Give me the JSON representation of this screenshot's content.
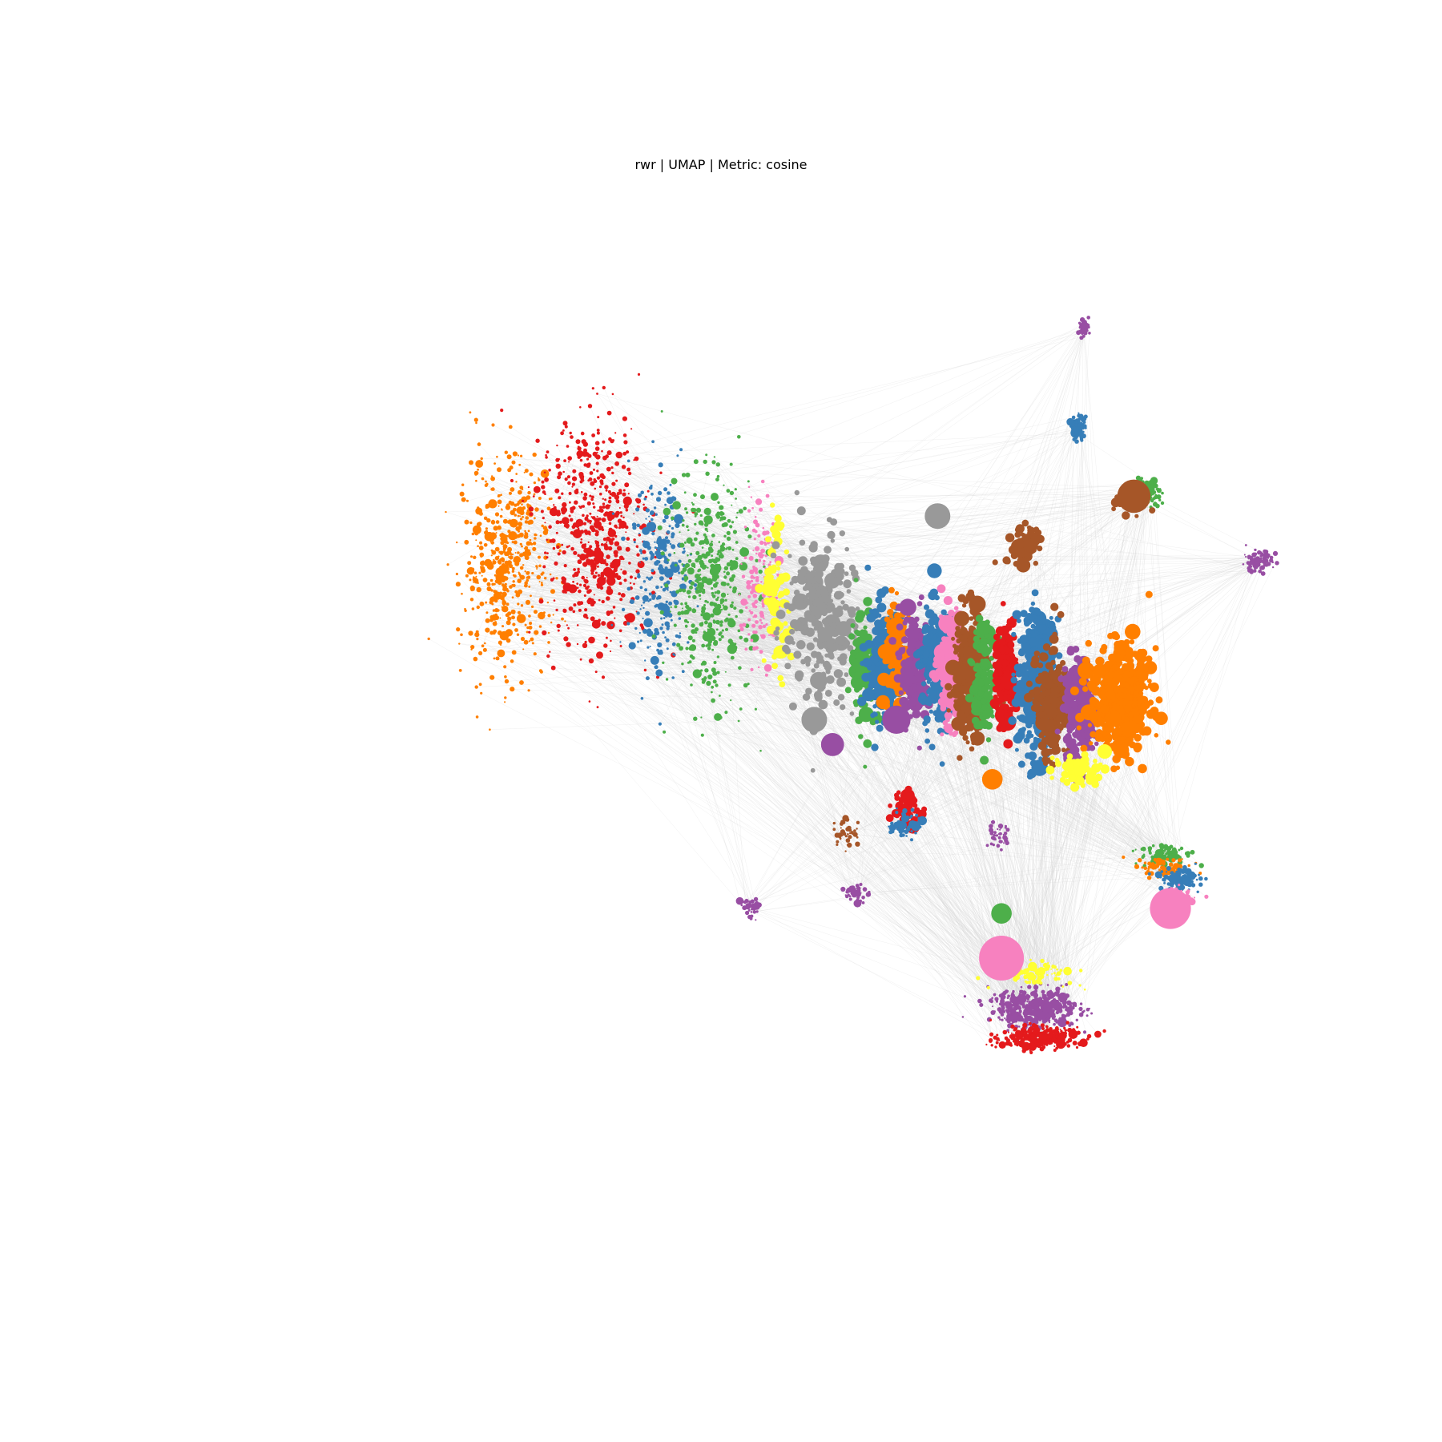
{
  "chart_data": {
    "type": "scatter",
    "title": "rwr | UMAP | Metric: cosine",
    "xlabel": "",
    "ylabel": "",
    "axes_visible": false,
    "grid": false,
    "legend": "none",
    "edge_color": "#d3d3d3",
    "palette": [
      "#e41a1c",
      "#377eb8",
      "#4daf4a",
      "#984ea3",
      "#ff7f00",
      "#ffff33",
      "#a65628",
      "#f781bf",
      "#999999"
    ],
    "clusters": [
      {
        "color": "#ff7f00",
        "center": [
          -6.6,
          5.0
        ],
        "spread": [
          0.9,
          1.9
        ],
        "count": 520,
        "size": "small"
      },
      {
        "color": "#e41a1c",
        "center": [
          -4.6,
          5.6
        ],
        "spread": [
          1.1,
          2.1
        ],
        "count": 560,
        "size": "small"
      },
      {
        "color": "#377eb8",
        "center": [
          -3.2,
          4.7
        ],
        "spread": [
          0.6,
          1.9
        ],
        "count": 260,
        "size": "small"
      },
      {
        "color": "#4daf4a",
        "center": [
          -2.1,
          4.5
        ],
        "spread": [
          0.8,
          2.0
        ],
        "count": 440,
        "size": "small"
      },
      {
        "color": "#f781bf",
        "center": [
          -1.0,
          4.6
        ],
        "spread": [
          0.35,
          1.5
        ],
        "count": 150,
        "size": "small"
      },
      {
        "color": "#ffff33",
        "center": [
          -0.6,
          4.3
        ],
        "spread": [
          0.25,
          1.4
        ],
        "count": 80,
        "size": "medium"
      },
      {
        "color": "#999999",
        "center": [
          0.3,
          3.7
        ],
        "spread": [
          0.7,
          1.6
        ],
        "count": 260,
        "size": "medium"
      },
      {
        "color": "#4daf4a",
        "center": [
          1.3,
          2.9
        ],
        "spread": [
          0.3,
          1.1
        ],
        "count": 120,
        "size": "medium"
      },
      {
        "color": "#377eb8",
        "center": [
          1.7,
          2.9
        ],
        "spread": [
          0.3,
          1.0
        ],
        "count": 200,
        "size": "medium"
      },
      {
        "color": "#ff7f00",
        "center": [
          2.0,
          3.1
        ],
        "spread": [
          0.25,
          1.0
        ],
        "count": 120,
        "size": "medium"
      },
      {
        "color": "#984ea3",
        "center": [
          2.4,
          2.9
        ],
        "spread": [
          0.3,
          1.0
        ],
        "count": 180,
        "size": "medium"
      },
      {
        "color": "#377eb8",
        "center": [
          2.9,
          2.8
        ],
        "spread": [
          0.3,
          1.1
        ],
        "count": 240,
        "size": "medium"
      },
      {
        "color": "#f781bf",
        "center": [
          3.2,
          2.8
        ],
        "spread": [
          0.25,
          1.0
        ],
        "count": 200,
        "size": "medium"
      },
      {
        "color": "#a65628",
        "center": [
          3.6,
          2.7
        ],
        "spread": [
          0.3,
          1.1
        ],
        "count": 300,
        "size": "medium"
      },
      {
        "color": "#4daf4a",
        "center": [
          3.9,
          2.6
        ],
        "spread": [
          0.2,
          1.0
        ],
        "count": 130,
        "size": "medium"
      },
      {
        "color": "#e41a1c",
        "center": [
          4.4,
          2.6
        ],
        "spread": [
          0.2,
          1.0
        ],
        "count": 160,
        "size": "medium"
      },
      {
        "color": "#377eb8",
        "center": [
          5.1,
          2.5
        ],
        "spread": [
          0.4,
          1.2
        ],
        "count": 420,
        "size": "medium"
      },
      {
        "color": "#a65628",
        "center": [
          5.4,
          2.1
        ],
        "spread": [
          0.3,
          1.0
        ],
        "count": 220,
        "size": "medium"
      },
      {
        "color": "#984ea3",
        "center": [
          6.0,
          2.0
        ],
        "spread": [
          0.3,
          0.9
        ],
        "count": 200,
        "size": "medium"
      },
      {
        "color": "#ff7f00",
        "center": [
          6.9,
          2.2
        ],
        "spread": [
          0.6,
          0.9
        ],
        "count": 520,
        "size": "medium"
      },
      {
        "color": "#ffff33",
        "center": [
          6.0,
          0.8
        ],
        "spread": [
          0.5,
          0.3
        ],
        "count": 60,
        "size": "medium"
      },
      {
        "color": "#984ea3",
        "center": [
          6.1,
          9.7
        ],
        "spread": [
          0.1,
          0.15
        ],
        "count": 40,
        "size": "small"
      },
      {
        "color": "#377eb8",
        "center": [
          6.0,
          7.7
        ],
        "spread": [
          0.15,
          0.2
        ],
        "count": 70,
        "size": "small"
      },
      {
        "color": "#4daf4a",
        "center": [
          7.5,
          6.4
        ],
        "spread": [
          0.25,
          0.25
        ],
        "count": 110,
        "size": "small"
      },
      {
        "color": "#a65628",
        "center": [
          7.1,
          6.2
        ],
        "spread": [
          0.3,
          0.25
        ],
        "count": 40,
        "size": "medium"
      },
      {
        "color": "#984ea3",
        "center": [
          9.9,
          5.0
        ],
        "spread": [
          0.3,
          0.2
        ],
        "count": 90,
        "size": "small"
      },
      {
        "color": "#a65628",
        "center": [
          4.8,
          5.3
        ],
        "spread": [
          0.35,
          0.4
        ],
        "count": 60,
        "size": "medium"
      },
      {
        "color": "#4daf4a",
        "center": [
          7.9,
          -0.9
        ],
        "spread": [
          0.5,
          0.2
        ],
        "count": 90,
        "size": "small"
      },
      {
        "color": "#ff7f00",
        "center": [
          7.9,
          -1.2
        ],
        "spread": [
          0.5,
          0.2
        ],
        "count": 90,
        "size": "small"
      },
      {
        "color": "#377eb8",
        "center": [
          8.2,
          -1.4
        ],
        "spread": [
          0.4,
          0.2
        ],
        "count": 100,
        "size": "small"
      },
      {
        "color": "#f781bf",
        "center": [
          8.2,
          -1.8
        ],
        "spread": [
          0.3,
          0.2
        ],
        "count": 50,
        "size": "small"
      },
      {
        "color": "#984ea3",
        "center": [
          5.0,
          -4.0
        ],
        "spread": [
          0.9,
          0.35
        ],
        "count": 420,
        "size": "small"
      },
      {
        "color": "#e41a1c",
        "center": [
          5.1,
          -4.6
        ],
        "spread": [
          0.8,
          0.2
        ],
        "count": 300,
        "size": "small"
      },
      {
        "color": "#ffff33",
        "center": [
          5.0,
          -3.3
        ],
        "spread": [
          0.8,
          0.2
        ],
        "count": 100,
        "size": "small"
      },
      {
        "color": "#984ea3",
        "center": [
          1.1,
          -1.7
        ],
        "spread": [
          0.2,
          0.15
        ],
        "count": 50,
        "size": "small"
      },
      {
        "color": "#984ea3",
        "center": [
          -1.2,
          -2.0
        ],
        "spread": [
          0.2,
          0.2
        ],
        "count": 40,
        "size": "small"
      },
      {
        "color": "#e41a1c",
        "center": [
          2.2,
          0.0
        ],
        "spread": [
          0.3,
          0.3
        ],
        "count": 50,
        "size": "medium"
      },
      {
        "color": "#377eb8",
        "center": [
          2.2,
          -0.3
        ],
        "spread": [
          0.3,
          0.25
        ],
        "count": 60,
        "size": "small"
      },
      {
        "color": "#a65628",
        "center": [
          0.9,
          -0.5
        ],
        "spread": [
          0.3,
          0.3
        ],
        "count": 40,
        "size": "small"
      },
      {
        "color": "#984ea3",
        "center": [
          4.2,
          -0.5
        ],
        "spread": [
          0.25,
          0.25
        ],
        "count": 40,
        "size": "small"
      }
    ],
    "large_nodes": [
      {
        "color": "#f781bf",
        "x": 8.0,
        "y": -2.0,
        "r": 3.2
      },
      {
        "color": "#f781bf",
        "x": 4.3,
        "y": -3.0,
        "r": 3.5
      },
      {
        "color": "#a65628",
        "x": 7.2,
        "y": 6.3,
        "r": 2.6
      },
      {
        "color": "#984ea3",
        "x": 2.0,
        "y": 1.8,
        "r": 2.2
      },
      {
        "color": "#999999",
        "x": 0.2,
        "y": 1.8,
        "r": 2.0
      },
      {
        "color": "#999999",
        "x": 2.9,
        "y": 5.9,
        "r": 2.0
      },
      {
        "color": "#4daf4a",
        "x": 4.3,
        "y": -2.1,
        "r": 1.6
      },
      {
        "color": "#ff7f00",
        "x": 4.1,
        "y": 0.6,
        "r": 1.6
      },
      {
        "color": "#984ea3",
        "x": 0.6,
        "y": 1.3,
        "r": 1.8
      }
    ]
  }
}
